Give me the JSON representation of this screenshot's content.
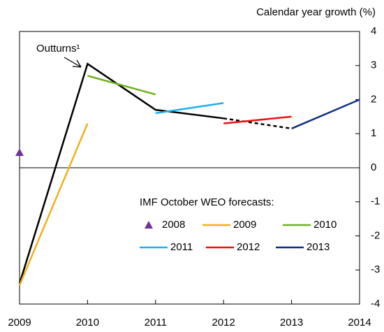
{
  "chart_data": {
    "type": "line",
    "y_axis_label": "Calendar year growth (%)",
    "annotation": "Outturns¹",
    "legend_title": "IMF October WEO forecasts:",
    "x": [
      2009,
      2010,
      2011,
      2012,
      2013,
      2014
    ],
    "xlim": [
      2009,
      2014
    ],
    "xticks": [
      2009,
      2010,
      2011,
      2012,
      2013,
      2014
    ],
    "ylim": [
      -4,
      4
    ],
    "yticks": [
      -4,
      -3,
      -2,
      -1,
      0,
      1,
      2,
      3,
      4
    ],
    "outturns": {
      "color": "#000000",
      "values": [
        -3.4,
        3.05,
        1.7,
        1.45,
        1.15,
        null
      ],
      "dashed_from_index": 3
    },
    "series": [
      {
        "name": "2008",
        "color": "#7030a0",
        "marker": "triangle",
        "values": [
          0.45,
          null,
          null,
          null,
          null,
          null
        ]
      },
      {
        "name": "2009",
        "color": "#f0b020",
        "values": [
          -3.45,
          1.3,
          null,
          null,
          null,
          null
        ]
      },
      {
        "name": "2010",
        "color": "#70b020",
        "values": [
          null,
          2.7,
          2.15,
          null,
          null,
          null
        ]
      },
      {
        "name": "2011",
        "color": "#20b0f0",
        "values": [
          null,
          null,
          1.6,
          1.9,
          null,
          null
        ]
      },
      {
        "name": "2012",
        "color": "#f01010",
        "values": [
          null,
          null,
          null,
          1.3,
          1.5,
          null
        ]
      },
      {
        "name": "2013",
        "color": "#103080",
        "values": [
          null,
          null,
          null,
          null,
          1.15,
          2.0
        ]
      }
    ]
  }
}
